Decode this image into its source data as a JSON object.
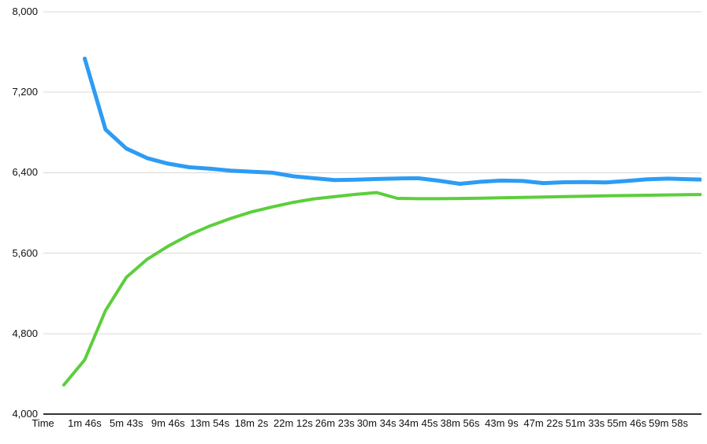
{
  "chart_data": {
    "type": "line",
    "title": "",
    "legend": "none",
    "grid": "horizontal",
    "ylim": [
      4000,
      8000
    ],
    "grid_color": "#d9d9d9",
    "axis_color": "#333333",
    "label_color": "#111111",
    "y_axis": {
      "ticks": [
        {
          "label": "8,000",
          "value": 8000
        },
        {
          "label": "7,200",
          "value": 7200
        },
        {
          "label": "6,400",
          "value": 6400
        },
        {
          "label": "5,600",
          "value": 5600
        },
        {
          "label": "4,800",
          "value": 4800
        },
        {
          "label": "4,000",
          "value": 4000
        }
      ]
    },
    "x_axis": {
      "labels": [
        "Time",
        "1m 46s",
        "5m 43s",
        "9m 46s",
        "13m 54s",
        "18m 2s",
        "22m 12s",
        "26m 23s",
        "30m 34s",
        "34m 45s",
        "38m 56s",
        "43m 9s",
        "47m 22s",
        "51m 33s",
        "55m 46s",
        "59m 58s"
      ],
      "tick_indices": [
        -1,
        1,
        3,
        5,
        7,
        9,
        11,
        13,
        15,
        17,
        19,
        21,
        23,
        25,
        27,
        29
      ]
    },
    "series": [
      {
        "name": "blue",
        "color": "#2d9cf4",
        "stroke_width": 5,
        "start_index": 1,
        "values": [
          7535,
          6830,
          6640,
          6545,
          6490,
          6455,
          6440,
          6420,
          6410,
          6400,
          6365,
          6345,
          6327,
          6330,
          6337,
          6343,
          6345,
          6320,
          6290,
          6310,
          6322,
          6318,
          6297,
          6305,
          6308,
          6303,
          6318,
          6335,
          6341,
          6334,
          6330
        ]
      },
      {
        "name": "green",
        "color": "#5cce3c",
        "stroke_width": 4,
        "start_index": 0,
        "values": [
          4290,
          4540,
          5030,
          5360,
          5540,
          5670,
          5780,
          5870,
          5945,
          6010,
          6060,
          6105,
          6140,
          6163,
          6185,
          6203,
          6145,
          6142,
          6142,
          6144,
          6147,
          6151,
          6155,
          6159,
          6163,
          6167,
          6170,
          6173,
          6176,
          6179,
          6182,
          6184
        ]
      }
    ]
  }
}
